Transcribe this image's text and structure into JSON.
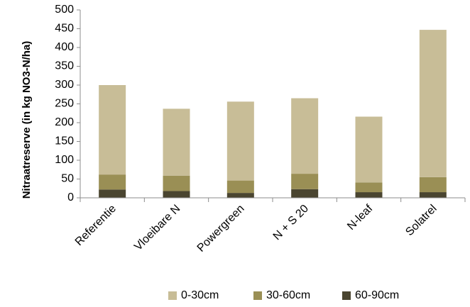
{
  "chart_data": {
    "type": "bar",
    "stacked": true,
    "categories": [
      "Referentie",
      "Vloeibare N",
      "Powergreen",
      "N + S 20",
      "N-leaf",
      "Solatrel"
    ],
    "series": [
      {
        "name": "60-90cm",
        "color": "#4a4530",
        "values": [
          22,
          18,
          13,
          23,
          15,
          15
        ]
      },
      {
        "name": "30-60cm",
        "color": "#9a8f55",
        "values": [
          40,
          41,
          33,
          41,
          26,
          40
        ]
      },
      {
        "name": "0-30cm",
        "color": "#c8bd97",
        "values": [
          238,
          178,
          210,
          201,
          175,
          392
        ]
      }
    ],
    "legend_order": [
      "0-30cm",
      "30-60cm",
      "60-90cm"
    ],
    "xlabel": "",
    "ylabel": "Nitraatreserve (in kg NO3-N/ha)",
    "ylim": [
      0,
      500
    ],
    "yticks": [
      0,
      50,
      100,
      150,
      200,
      250,
      300,
      350,
      400,
      450,
      500
    ],
    "grid": false,
    "legend_position": "bottom"
  }
}
